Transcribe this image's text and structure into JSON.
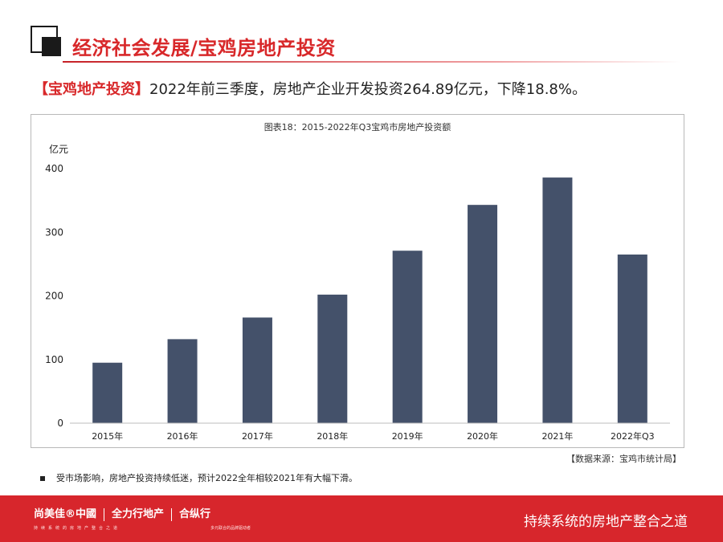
{
  "header": {
    "title": "经济社会发展/宝鸡房地产投资",
    "headline_tag": "【宝鸡地产投资】",
    "headline_text": "2022年前三季度，房地产企业开发投资264.89亿元，下降18.8%。"
  },
  "chart_data": {
    "type": "bar",
    "title": "图表18：2015-2022年Q3宝鸡市房地产投资额",
    "ylabel": "亿元",
    "xlabel": "",
    "categories": [
      "2015年",
      "2016年",
      "2017年",
      "2018年",
      "2019年",
      "2020年",
      "2021年",
      "2022年Q3"
    ],
    "values": [
      95,
      132,
      166,
      202,
      271,
      343,
      386,
      265
    ],
    "ylim": [
      0,
      400
    ],
    "yticks": [
      0,
      100,
      200,
      300,
      400
    ],
    "bar_color": "#44516a",
    "grid": false,
    "legend": "none"
  },
  "notes": {
    "source": "【数据来源：宝鸡市统计局】",
    "bullet": "受市场影响，房地产投资持续低迷，预计2022全年相较2021年有大幅下滑。"
  },
  "footer": {
    "brand_1": "尚美佳®中國",
    "brand_2": "全力行地产",
    "brand_3": "合纵行",
    "brand_sub_1": "持续系统的房地产整合之道",
    "brand_sub_2": "多元联合的品牌驱动者",
    "slogan": "持续系统的房地产整合之道"
  },
  "colors": {
    "accent": "#d8282a",
    "footer_bg": "#d7262c",
    "bar": "#44516a"
  }
}
